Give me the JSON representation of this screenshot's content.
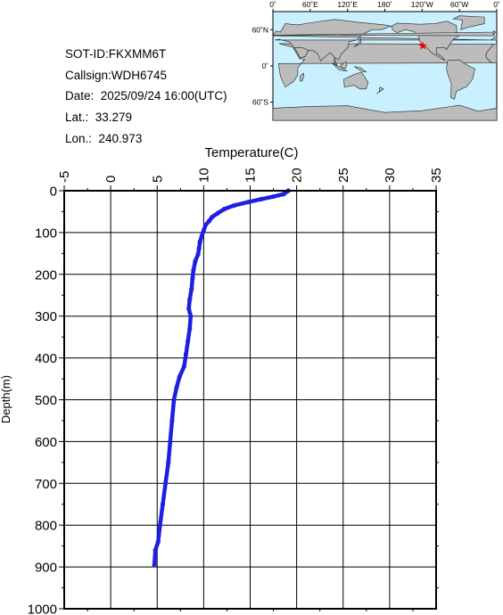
{
  "info": {
    "sot_id": "SOT-ID:FKXMM6T",
    "callsign": "Callsign:WDH6745",
    "date": "Date:  2025/09/24 16:00(UTC)",
    "lat": "Lat.:  33.279",
    "lon": "Lon.:  240.973"
  },
  "map": {
    "lon_labels": [
      "0˚",
      "60˚E",
      "120˚E",
      "180˚",
      "120˚W",
      "60˚W",
      "0˚"
    ],
    "lat_labels": [
      "60˚N",
      "0˚",
      "60˚S"
    ],
    "marker": {
      "lat": 33.279,
      "lon": 240.973,
      "color": "#ff0000"
    },
    "ocean_color": "#c8f0ff",
    "land_color": "#bcbcbc"
  },
  "chart_data": {
    "type": "line",
    "xlabel": "Temperature(C)",
    "ylabel": "Depth(m)",
    "xlim": [
      -5,
      35
    ],
    "ylim": [
      1000,
      0
    ],
    "x_ticks": [
      "-5",
      "0",
      "5",
      "10",
      "15",
      "20",
      "25",
      "30",
      "35"
    ],
    "y_ticks": [
      "0",
      "100",
      "200",
      "300",
      "400",
      "500",
      "600",
      "700",
      "800",
      "900",
      "1000"
    ],
    "grid": true,
    "series": [
      {
        "color": "#1f1fe0",
        "points": [
          [
            19.1,
            0
          ],
          [
            18.6,
            8
          ],
          [
            17.5,
            14
          ],
          [
            16.2,
            20
          ],
          [
            14.8,
            27
          ],
          [
            13.3,
            35
          ],
          [
            12.2,
            44
          ],
          [
            11.5,
            54
          ],
          [
            10.9,
            63
          ],
          [
            10.6,
            72
          ],
          [
            10.2,
            82
          ],
          [
            10.0,
            95
          ],
          [
            9.8,
            108
          ],
          [
            9.6,
            122
          ],
          [
            9.5,
            138
          ],
          [
            9.4,
            152
          ],
          [
            9.1,
            168
          ],
          [
            8.9,
            190
          ],
          [
            8.8,
            210
          ],
          [
            8.7,
            235
          ],
          [
            8.5,
            260
          ],
          [
            8.4,
            282
          ],
          [
            8.6,
            300
          ],
          [
            8.5,
            330
          ],
          [
            8.3,
            360
          ],
          [
            8.1,
            390
          ],
          [
            7.9,
            420
          ],
          [
            7.4,
            445
          ],
          [
            7.1,
            470
          ],
          [
            6.8,
            500
          ],
          [
            6.6,
            550
          ],
          [
            6.4,
            600
          ],
          [
            6.2,
            650
          ],
          [
            5.9,
            700
          ],
          [
            5.6,
            750
          ],
          [
            5.3,
            800
          ],
          [
            5.1,
            840
          ],
          [
            4.8,
            860
          ],
          [
            4.7,
            895
          ]
        ]
      }
    ]
  }
}
